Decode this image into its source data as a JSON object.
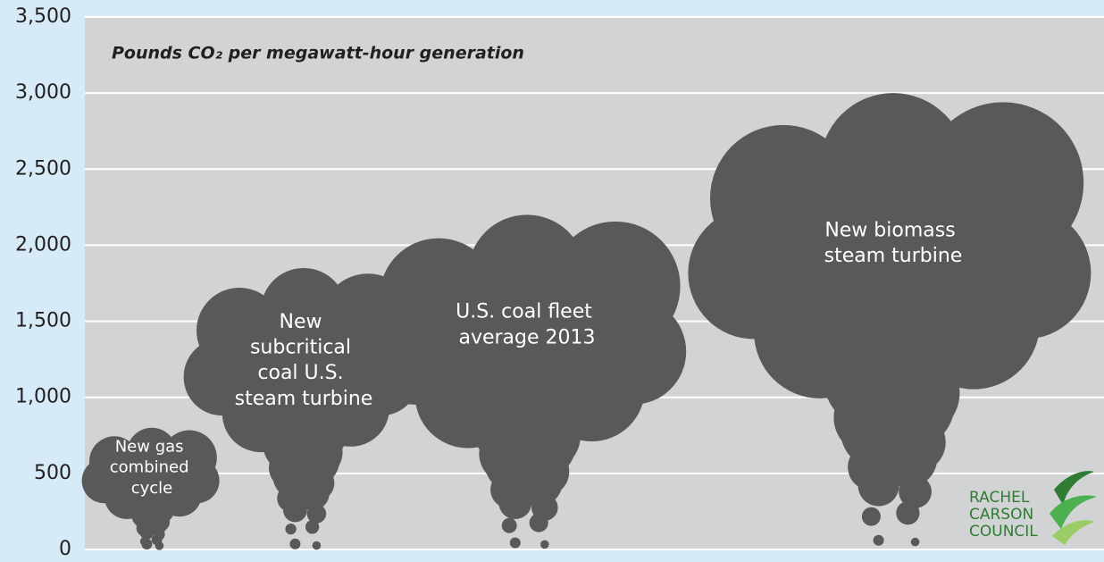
{
  "chart_data": {
    "type": "smoke-bar",
    "subtitle": "Pounds CO₂ per megawatt-hour generation",
    "categories": [
      "New gas combined cycle",
      "New subcritical coal U.S. steam turbine",
      "U.S. coal fleet average 2013",
      "New biomass steam turbine"
    ],
    "values": [
      800,
      1850,
      2200,
      3000
    ],
    "color": "#58595b",
    "ylim": [
      0,
      3500
    ],
    "yticks": [
      0,
      500,
      {
        "value": 1000,
        "label": "1,000"
      },
      {
        "value": 1500,
        "label": "1,500"
      },
      {
        "value": 2000,
        "label": "2,000"
      },
      {
        "value": 2500,
        "label": "2,500"
      },
      {
        "value": 3000,
        "label": "3,000"
      },
      {
        "value": 3500,
        "label": "3,500"
      }
    ],
    "grid": true,
    "logo": [
      "RACHEL",
      "CARSON",
      "COUNCIL"
    ]
  }
}
